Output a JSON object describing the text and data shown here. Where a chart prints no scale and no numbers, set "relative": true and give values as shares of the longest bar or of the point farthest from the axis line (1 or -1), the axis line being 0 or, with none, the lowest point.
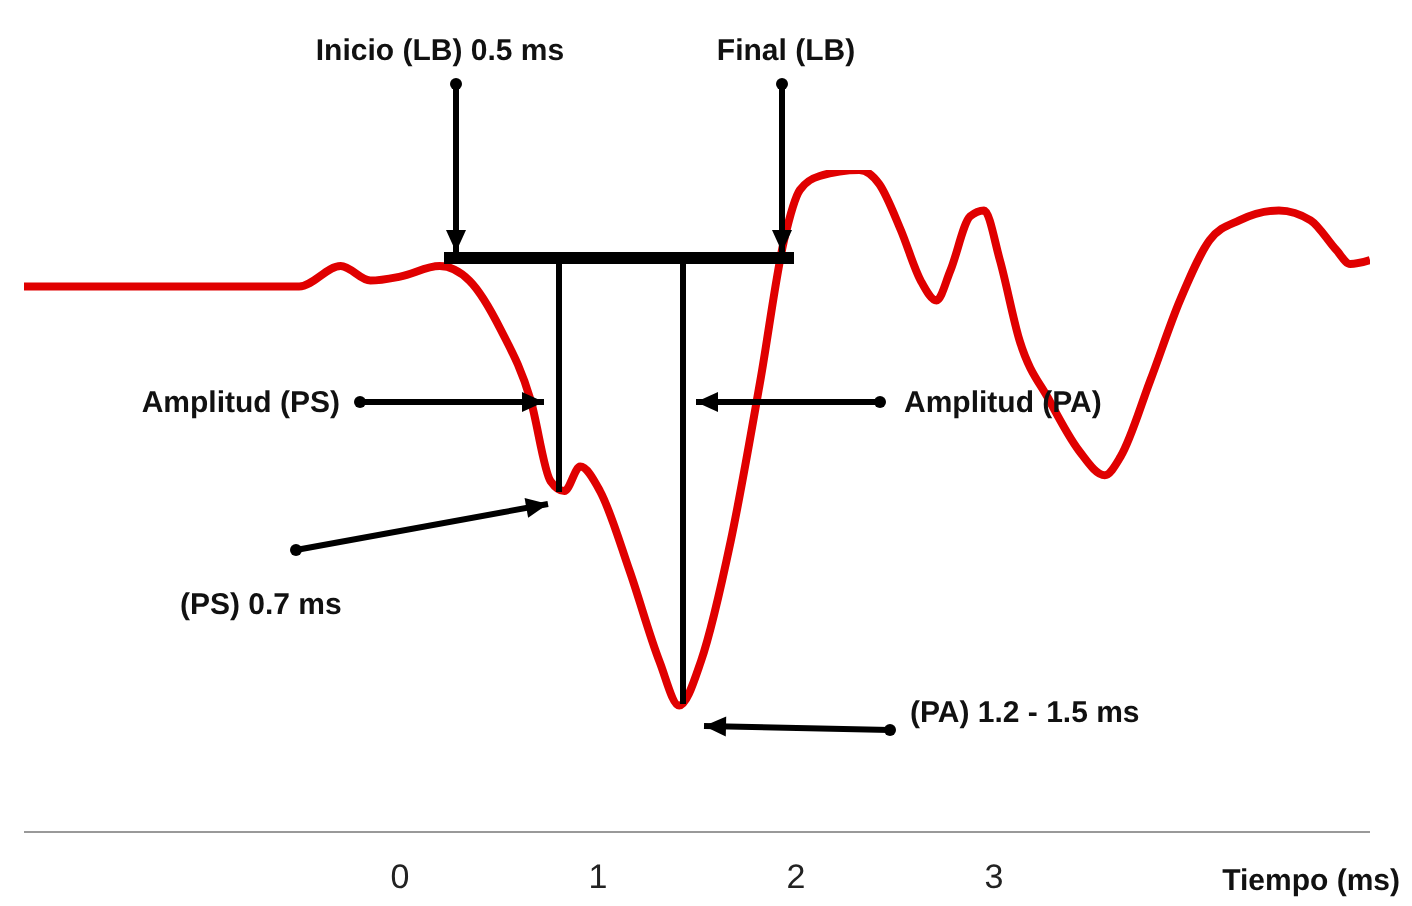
{
  "chart_data": {
    "type": "line",
    "relative": true,
    "xlabel": "Tiempo (ms)",
    "xlim": [
      -1.9,
      4.9
    ],
    "xticks": [
      0,
      1,
      2,
      3
    ],
    "grid": false,
    "legend": false,
    "marker": "none",
    "line_style": "solid",
    "x": [
      -1.9,
      -0.51,
      -0.3,
      -0.15,
      0,
      0.2,
      0.35,
      0.51,
      0.66,
      0.76,
      0.83,
      0.91,
      1.01,
      1.16,
      1.31,
      1.41,
      1.52,
      1.67,
      1.82,
      1.94,
      2.02,
      2.12,
      2.32,
      2.42,
      2.53,
      2.63,
      2.71,
      2.78,
      2.88,
      2.95,
      3.03,
      3.13,
      3.28,
      3.43,
      3.56,
      3.64,
      3.79,
      3.94,
      4.09,
      4.24,
      4.44,
      4.6,
      4.73,
      4.8,
      4.9
    ],
    "series": [
      {
        "color": "#e00000",
        "values": [
          0.824,
          0.824,
          0.855,
          0.833,
          0.839,
          0.855,
          0.833,
          0.758,
          0.652,
          0.53,
          0.515,
          0.552,
          0.515,
          0.394,
          0.258,
          0.191,
          0.258,
          0.439,
          0.682,
          0.894,
          0.97,
          0.991,
          1.0,
          0.979,
          0.909,
          0.833,
          0.803,
          0.848,
          0.93,
          0.939,
          0.864,
          0.742,
          0.652,
          0.576,
          0.539,
          0.567,
          0.682,
          0.803,
          0.894,
          0.924,
          0.939,
          0.924,
          0.879,
          0.858,
          0.864
        ]
      }
    ],
    "annotations": [
      "Inicio (LB) 0.5 ms",
      "Final (LB)",
      "Amplitud (PS)",
      "Amplitud (PA)",
      "(PS) 0.7 ms",
      "(PA) 1.2 - 1.5 ms"
    ]
  }
}
